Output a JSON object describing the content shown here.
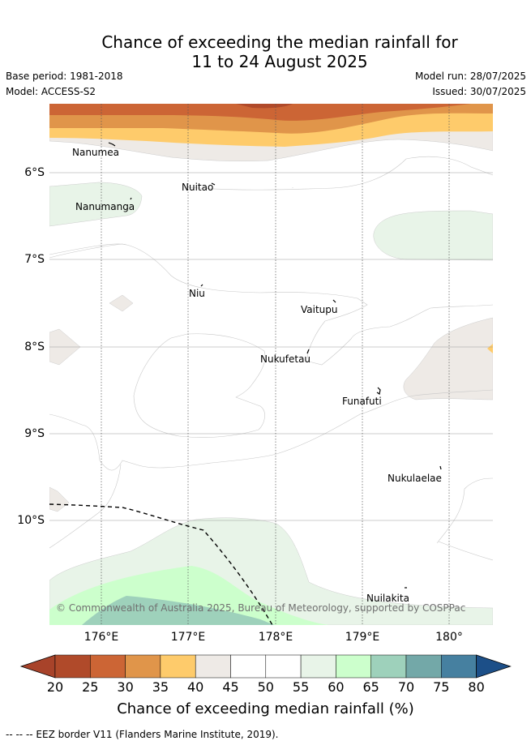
{
  "title": {
    "line1": "Chance of exceeding the median rainfall for",
    "line2": "11 to 24 August 2025"
  },
  "meta": {
    "base_period": "Base period: 1981-2018",
    "model": "Model: ACCESS-S2",
    "model_run": "Model run: 28/07/2025",
    "issued": "Issued: 30/07/2025"
  },
  "map": {
    "latitude_labels": [
      "6°S",
      "7°S",
      "8°S",
      "9°S",
      "10°S"
    ],
    "longitude_labels": [
      "176°E",
      "177°E",
      "178°E",
      "179°E",
      "180°"
    ],
    "places": [
      "Nanumea",
      "Nuitao",
      "Nanumanga",
      "Niu",
      "Vaitupu",
      "Nukufetau",
      "Funafuti",
      "Nukulaelae",
      "Nuilakita"
    ],
    "copyright": "© Commonwealth of Australia 2025, Bureau of Meteorology, supported by COSPPac"
  },
  "colorbar": {
    "ticks": [
      "20",
      "25",
      "30",
      "35",
      "40",
      "45",
      "50",
      "55",
      "60",
      "65",
      "70",
      "75",
      "80"
    ],
    "colors": [
      "#b04a2a",
      "#cc6535",
      "#e0954a",
      "#fecb6b",
      "#eeeae6",
      "#ffffff",
      "#ffffff",
      "#e8f4e8",
      "#ccffcc",
      "#9ed1bb",
      "#73a8a8",
      "#4680a0"
    ],
    "under_color": "#a8432a",
    "over_color": "#1c4f88",
    "title": "Chance of exceeding median rainfall (%)"
  },
  "footnote": "-- -- -- EEZ border V11 (Flanders Marine Institute, 2019)."
}
